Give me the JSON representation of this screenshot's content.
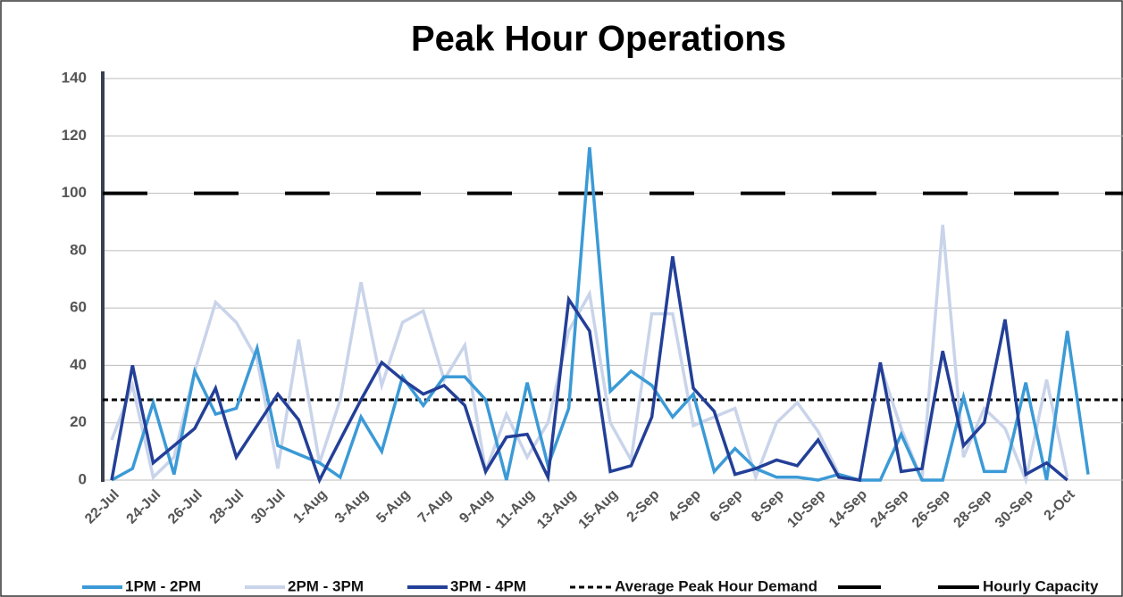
{
  "chart_data": {
    "type": "line",
    "title": "Peak Hour Operations",
    "categories": [
      "22-Jul",
      null,
      "24-Jul",
      null,
      "26-Jul",
      null,
      "28-Jul",
      null,
      "30-Jul",
      null,
      "1-Aug",
      null,
      "3-Aug",
      null,
      "5-Aug",
      null,
      "7-Aug",
      null,
      "9-Aug",
      null,
      "11-Aug",
      null,
      "13-Aug",
      null,
      "15-Aug",
      null,
      "2-Sep",
      null,
      "4-Sep",
      null,
      "6-Sep",
      null,
      "8-Sep",
      null,
      "10-Sep",
      null,
      "14-Sep",
      null,
      "24-Sep",
      null,
      "26-Sep",
      null,
      "28-Sep",
      null,
      "30-Sep",
      null,
      "2-Oct",
      null
    ],
    "series": [
      {
        "name": "1PM - 2PM",
        "color": "#3b9ad6",
        "values": [
          0,
          4,
          27,
          2,
          38,
          23,
          25,
          46,
          12,
          9,
          6,
          1,
          22,
          10,
          36,
          26,
          36,
          36,
          28,
          0,
          34,
          5,
          25,
          116,
          31,
          38,
          33,
          22,
          30,
          3,
          11,
          4,
          1,
          1,
          0,
          2,
          0,
          0,
          16,
          0,
          0,
          29,
          3,
          3,
          34,
          0,
          52,
          2
        ]
      },
      {
        "name": "2PM - 3PM",
        "color": "#c9d4ea",
        "values": [
          14,
          33,
          1,
          8,
          38,
          62,
          55,
          42,
          4,
          49,
          6,
          28,
          69,
          33,
          55,
          59,
          35,
          47,
          3,
          23,
          8,
          20,
          52,
          65,
          20,
          7,
          58,
          58,
          19,
          22,
          25,
          1,
          20,
          27,
          17,
          2,
          0,
          40,
          18,
          0,
          89,
          8,
          25,
          18,
          0,
          35,
          1,
          null
        ]
      },
      {
        "name": "3PM - 4PM",
        "color": "#233f97",
        "values": [
          0,
          40,
          6,
          12,
          18,
          32,
          8,
          19,
          30,
          21,
          0,
          14,
          28,
          41,
          35,
          30,
          33,
          26,
          3,
          15,
          16,
          1,
          63,
          52,
          3,
          5,
          22,
          78,
          32,
          24,
          2,
          4,
          7,
          5,
          14,
          1,
          0,
          41,
          3,
          4,
          45,
          12,
          20,
          56,
          2,
          6,
          0,
          null
        ]
      }
    ],
    "reference_lines": [
      {
        "name": "Average Peak Hour Demand",
        "value": 28,
        "color": "#000000",
        "style": "dotted"
      },
      {
        "name": "Hourly Capacity",
        "value": 100,
        "color": "#000000",
        "style": "dashed"
      }
    ],
    "ylim": [
      0,
      140
    ],
    "yticks": [
      0,
      20,
      40,
      60,
      80,
      100,
      120,
      140
    ],
    "grid": true
  }
}
